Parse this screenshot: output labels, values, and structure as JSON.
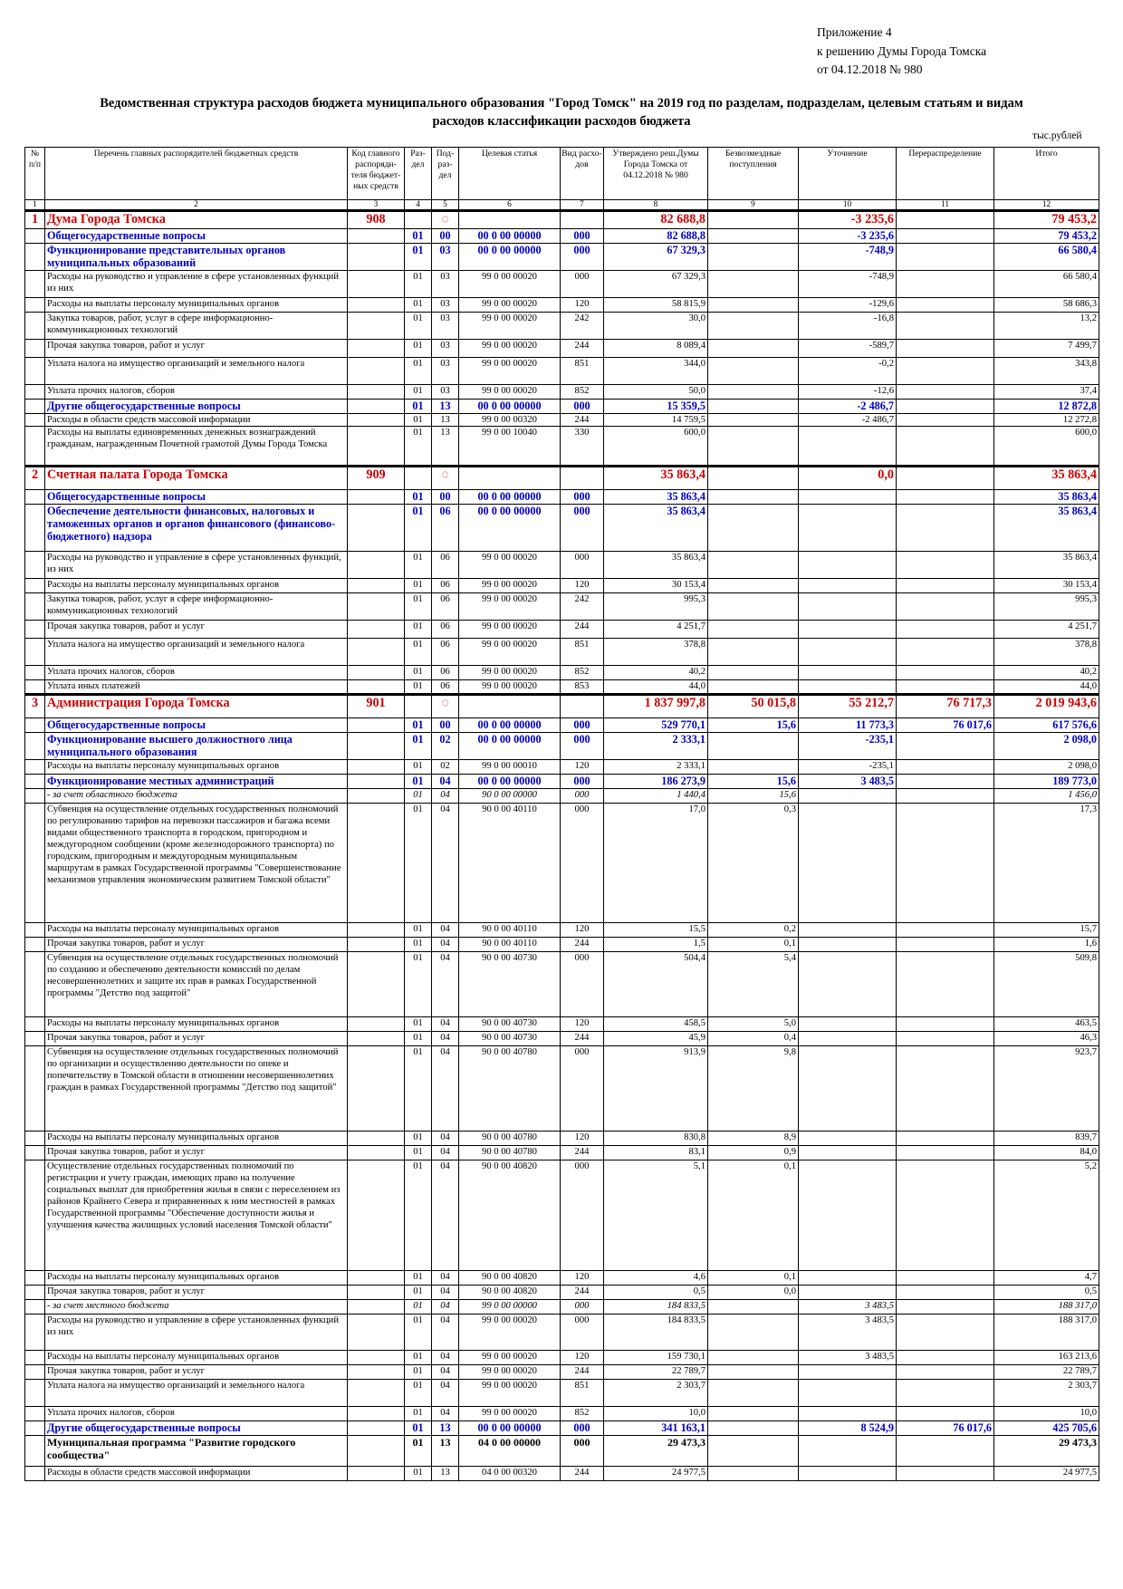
{
  "annex": {
    "line1": "Приложение 4",
    "line2": "к решению Думы Города Томска",
    "line3": "от 04.12.2018 № 980"
  },
  "title": {
    "line1": "Ведомственная структура расходов бюджета муниципального образования \"Город Томск\" на 2019 год по разделам, подразделам, целевым статьям и видам",
    "line2": "расходов классификации расходов бюджета"
  },
  "units": "тыс.рублей",
  "columns": {
    "no": "№ п/п",
    "name": "Перечень главных распорядителей бюджетных средств",
    "admin": "Код главного распоряди-теля бюджет-ных средств",
    "section": "Раз-дел",
    "subsection": "Под-раз-дел",
    "target": "Целевая статья",
    "kind": "Вид расхо-дов",
    "approved": "Утверждено реш.Думы Города Томска от 04.12.2018 № 980",
    "gratuitous": "Безвозмездные поступления",
    "clarification": "Уточнение",
    "redistribution": "Перераспределение",
    "total": "Итого"
  },
  "column_numbers": [
    "1",
    "2",
    "3",
    "4",
    "5",
    "6",
    "7",
    "8",
    "9",
    "10",
    "11",
    "12"
  ],
  "rows": [
    {
      "type": "org",
      "no": "1",
      "name": "Дума Города Томска",
      "admin": "908",
      "subsection": "◌",
      "approved": "82 688,8",
      "clarification": "-3 235,6",
      "total": "79 453,2"
    },
    {
      "type": "sec",
      "name": "Общегосударственные вопросы",
      "section": "01",
      "subsection": "00",
      "target": "00 0 00 00000",
      "kind": "000",
      "approved": "82 688,8",
      "clarification": "-3 235,6",
      "total": "79 453,2"
    },
    {
      "type": "sec",
      "name": "Функционирование представительных органов муниципальных образований",
      "section": "01",
      "subsection": "03",
      "target": "00 0 00 00000",
      "kind": "000",
      "approved": "67 329,3",
      "clarification": "-748,9",
      "total": "66 580,4"
    },
    {
      "type": "item",
      "name": "Расходы на руководство и управление в сфере установленных функций из них",
      "section": "01",
      "subsection": "03",
      "target": "99 0 00 00020",
      "kind": "000",
      "approved": "67 329,3",
      "clarification": "-748,9",
      "total": "66 580,4"
    },
    {
      "type": "item",
      "name": "Расходы на выплаты персоналу муниципальных органов",
      "section": "01",
      "subsection": "03",
      "target": "99 0 00 00020",
      "kind": "120",
      "approved": "58 815,9",
      "clarification": "-129,6",
      "total": "58 686,3"
    },
    {
      "type": "item",
      "name": "Закупка товаров, работ, услуг в сфере информационно-коммуникационных технологий",
      "section": "01",
      "subsection": "03",
      "target": "99 0 00 00020",
      "kind": "242",
      "approved": "30,0",
      "clarification": "-16,8",
      "total": "13,2"
    },
    {
      "type": "item",
      "name": "Прочая закупка товаров, работ и услуг",
      "section": "01",
      "subsection": "03",
      "target": "99 0 00 00020",
      "kind": "244",
      "approved": "8 089,4",
      "clarification": "-589,7",
      "total": "7 499,7"
    },
    {
      "type": "item",
      "name": "Уплата налога на имущество организаций и земельного налога",
      "section": "01",
      "subsection": "03",
      "target": "99 0 00 00020",
      "kind": "851",
      "approved": "344,0",
      "clarification": "-0,2",
      "total": "343,8"
    },
    {
      "type": "item",
      "name": "Уплата прочих налогов, сборов",
      "section": "01",
      "subsection": "03",
      "target": "99 0 00 00020",
      "kind": "852",
      "approved": "50,0",
      "clarification": "-12,6",
      "total": "37,4"
    },
    {
      "type": "sec",
      "name": "Другие общегосударственные вопросы",
      "section": "01",
      "subsection": "13",
      "target": "00 0 00 00000",
      "kind": "000",
      "approved": "15 359,5",
      "clarification": "-2 486,7",
      "total": "12 872,8"
    },
    {
      "type": "item",
      "name": "Расходы в области средств массовой информации",
      "section": "01",
      "subsection": "13",
      "target": "99 0 00 00320",
      "kind": "244",
      "approved": "14 759,5",
      "clarification": "-2 486,7",
      "total": "12 272,8"
    },
    {
      "type": "item",
      "name": "Расходы на выплаты единовременных денежных вознаграждений гражданам, награжденным Почетной грамотой Думы Города Томска",
      "section": "01",
      "subsection": "13",
      "target": "99 0 00 10040",
      "kind": "330",
      "approved": "600,0",
      "total": "600,0"
    },
    {
      "type": "org",
      "no": "2",
      "name": "Счетная палата Города Томска",
      "admin": "909",
      "subsection": "◌",
      "approved": "35 863,4",
      "clarification": "0,0",
      "total": "35 863,4"
    },
    {
      "type": "sec",
      "name": "Общегосударственные вопросы",
      "section": "01",
      "subsection": "00",
      "target": "00 0 00 00000",
      "kind": "000",
      "approved": "35 863,4",
      "total": "35 863,4"
    },
    {
      "type": "sec",
      "name": "Обеспечение деятельности финансовых, налоговых и таможенных органов и органов финансового (финансово-бюджетного) надзора",
      "section": "01",
      "subsection": "06",
      "target": "00 0 00 00000",
      "kind": "000",
      "approved": "35 863,4",
      "total": "35 863,4"
    },
    {
      "type": "item",
      "name": "Расходы на руководство и управление в сфере установленных функций, из них",
      "section": "01",
      "subsection": "06",
      "target": "99 0 00 00020",
      "kind": "000",
      "approved": "35 863,4",
      "total": "35 863,4"
    },
    {
      "type": "item",
      "name": "Расходы на выплаты персоналу муниципальных органов",
      "section": "01",
      "subsection": "06",
      "target": "99 0 00 00020",
      "kind": "120",
      "approved": "30 153,4",
      "total": "30 153,4"
    },
    {
      "type": "item",
      "name": "Закупка товаров, работ, услуг в сфере информационно-коммуникационных технологий",
      "section": "01",
      "subsection": "06",
      "target": "99 0 00 00020",
      "kind": "242",
      "approved": "995,3",
      "total": "995,3"
    },
    {
      "type": "item",
      "name": "Прочая закупка товаров, работ и услуг",
      "section": "01",
      "subsection": "06",
      "target": "99 0 00 00020",
      "kind": "244",
      "approved": "4 251,7",
      "total": "4 251,7"
    },
    {
      "type": "item",
      "name": "Уплата налога на имущество организаций и земельного налога",
      "section": "01",
      "subsection": "06",
      "target": "99 0 00 00020",
      "kind": "851",
      "approved": "378,8",
      "total": "378,8"
    },
    {
      "type": "item",
      "name": "Уплата прочих налогов, сборов",
      "section": "01",
      "subsection": "06",
      "target": "99 0 00 00020",
      "kind": "852",
      "approved": "40,2",
      "total": "40,2"
    },
    {
      "type": "item",
      "name": "Уплата иных платежей",
      "section": "01",
      "subsection": "06",
      "target": "99 0 00 00020",
      "kind": "853",
      "approved": "44,0",
      "total": "44,0"
    },
    {
      "type": "org",
      "no": "3",
      "name": "Администрация Города Томска",
      "admin": "901",
      "subsection": "◌",
      "approved": "1 837 997,8",
      "gratuitous": "50 015,8",
      "clarification": "55 212,7",
      "redistribution": "76 717,3",
      "total": "2 019 943,6"
    },
    {
      "type": "sec",
      "name": "Общегосударственные вопросы",
      "section": "01",
      "subsection": "00",
      "target": "00 0 00 00000",
      "kind": "000",
      "approved": "529 770,1",
      "gratuitous": "15,6",
      "clarification": "11 773,3",
      "redistribution": "76 017,6",
      "total": "617 576,6"
    },
    {
      "type": "sec",
      "name": "Функционирование высшего должностного лица муниципального образования",
      "section": "01",
      "subsection": "02",
      "target": "00 0 00 00000",
      "kind": "000",
      "approved": "2 333,1",
      "clarification": "-235,1",
      "total": "2 098,0"
    },
    {
      "type": "item",
      "name": "Расходы на выплаты персоналу муниципальных органов",
      "section": "01",
      "subsection": "02",
      "target": "99 0 00 00010",
      "kind": "120",
      "approved": "2 333,1",
      "clarification": "-235,1",
      "total": "2 098,0"
    },
    {
      "type": "sec",
      "name": "Функционирование местных администраций",
      "section": "01",
      "subsection": "04",
      "target": "00 0 00 00000",
      "kind": "000",
      "approved": "186 273,9",
      "gratuitous": "15,6",
      "clarification": "3 483,5",
      "total": "189 773,0"
    },
    {
      "type": "it",
      "name": "- за счет областного бюджета",
      "section": "01",
      "subsection": "04",
      "target": "90 0 00 00000",
      "kind": "000",
      "approved": "1 440,4",
      "gratuitous": "15,6",
      "total": "1 456,0"
    },
    {
      "type": "item",
      "name": "Субвенция на осуществление отдельных государственных полномочий по регулированию тарифов на перевозки пассажиров и багажа всеми видами общественного транспорта в городском, пригородном и междугородном сообщении (кроме железнодорожного транспорта) по городским, пригородным и междугородным муниципальным маршрутам в рамках Государственной программы \"Совершенствование механизмов управления экономическим развитием Томской области\"",
      "section": "01",
      "subsection": "04",
      "target": "90 0 00 40110",
      "kind": "000",
      "approved": "17,0",
      "gratuitous": "0,3",
      "total": "17,3"
    },
    {
      "type": "item",
      "name": "Расходы на выплаты персоналу муниципальных органов",
      "section": "01",
      "subsection": "04",
      "target": "90 0 00 40110",
      "kind": "120",
      "approved": "15,5",
      "gratuitous": "0,2",
      "total": "15,7"
    },
    {
      "type": "item",
      "name": "Прочая закупка товаров, работ и услуг",
      "section": "01",
      "subsection": "04",
      "target": "90 0 00 40110",
      "kind": "244",
      "approved": "1,5",
      "gratuitous": "0,1",
      "total": "1,6"
    },
    {
      "type": "item",
      "name": "Субвенция на осуществление отдельных государственных полномочий по созданию и обеспечению деятельности комиссий по делам несовершеннолетних и защите их прав в рамках Государственной программы \"Детство под защитой\"",
      "section": "01",
      "subsection": "04",
      "target": "90 0 00 40730",
      "kind": "000",
      "approved": "504,4",
      "gratuitous": "5,4",
      "total": "509,8"
    },
    {
      "type": "item",
      "name": "Расходы на выплаты персоналу муниципальных органов",
      "section": "01",
      "subsection": "04",
      "target": "90 0 00 40730",
      "kind": "120",
      "approved": "458,5",
      "gratuitous": "5,0",
      "total": "463,5"
    },
    {
      "type": "item",
      "name": "Прочая закупка товаров, работ и услуг",
      "section": "01",
      "subsection": "04",
      "target": "90 0 00 40730",
      "kind": "244",
      "approved": "45,9",
      "gratuitous": "0,4",
      "total": "46,3"
    },
    {
      "type": "item",
      "name": "Субвенция на осуществление отдельных государственных полномочий по организации и осуществлению деятельности по опеке и попечительству в Томской области в отношении несовершеннолетних граждан в рамках Государственной программы \"Детство под защитой\"",
      "section": "01",
      "subsection": "04",
      "target": "90 0 00 40780",
      "kind": "000",
      "approved": "913,9",
      "gratuitous": "9,8",
      "total": "923,7"
    },
    {
      "type": "item",
      "name": "Расходы на выплаты персоналу муниципальных органов",
      "section": "01",
      "subsection": "04",
      "target": "90 0 00 40780",
      "kind": "120",
      "approved": "830,8",
      "gratuitous": "8,9",
      "total": "839,7"
    },
    {
      "type": "item",
      "name": "Прочая закупка товаров, работ и услуг",
      "section": "01",
      "subsection": "04",
      "target": "90 0 00 40780",
      "kind": "244",
      "approved": "83,1",
      "gratuitous": "0,9",
      "total": "84,0"
    },
    {
      "type": "item",
      "name": "Осуществление отдельных государственных полномочий по регистрации и учету граждан, имеющих право на получение социальных выплат для приобретения жилья в связи с переселением из районов Крайнего Севера и приравненных к ним местностей в рамках Государственной программы \"Обеспечение доступности жилья и улучшения качества жилищных условий населения Томской области\"",
      "section": "01",
      "subsection": "04",
      "target": "90 0 00 40820",
      "kind": "000",
      "approved": "5,1",
      "gratuitous": "0,1",
      "total": "5,2"
    },
    {
      "type": "item",
      "name": "Расходы на выплаты персоналу муниципальных органов",
      "section": "01",
      "subsection": "04",
      "target": "90 0 00 40820",
      "kind": "120",
      "approved": "4,6",
      "gratuitous": "0,1",
      "total": "4,7"
    },
    {
      "type": "item",
      "name": "Прочая закупка товаров, работ и услуг",
      "section": "01",
      "subsection": "04",
      "target": "90 0 00 40820",
      "kind": "244",
      "approved": "0,5",
      "gratuitous": "0,0",
      "total": "0,5"
    },
    {
      "type": "it",
      "name": "- за счет местного бюджета",
      "section": "01",
      "subsection": "04",
      "target": "99 0 00 00000",
      "kind": "000",
      "approved": "184 833,5",
      "clarification": "3 483,5",
      "total": "188 317,0"
    },
    {
      "type": "item",
      "name": "Расходы на руководство и управление в сфере установленных функций из них",
      "section": "01",
      "subsection": "04",
      "target": "99 0 00 00020",
      "kind": "000",
      "approved": "184 833,5",
      "clarification": "3 483,5",
      "total": "188 317,0"
    },
    {
      "type": "item",
      "name": "Расходы на выплаты персоналу муниципальных органов",
      "section": "01",
      "subsection": "04",
      "target": "99 0 00 00020",
      "kind": "120",
      "approved": "159 730,1",
      "clarification": "3 483,5",
      "total": "163 213,6"
    },
    {
      "type": "item",
      "name": "Прочая закупка товаров, работ и услуг",
      "section": "01",
      "subsection": "04",
      "target": "99 0 00 00020",
      "kind": "244",
      "approved": "22 789,7",
      "total": "22 789,7"
    },
    {
      "type": "item",
      "name": "Уплата налога на имущество организаций и земельного налога",
      "section": "01",
      "subsection": "04",
      "target": "99 0 00 00020",
      "kind": "851",
      "approved": "2 303,7",
      "total": "2 303,7"
    },
    {
      "type": "item",
      "name": "Уплата прочих налогов, сборов",
      "section": "01",
      "subsection": "04",
      "target": "99 0 00 00020",
      "kind": "852",
      "approved": "10,0",
      "total": "10,0"
    },
    {
      "type": "sec",
      "name": "Другие общегосударственные вопросы",
      "section": "01",
      "subsection": "13",
      "target": "00 0 00 00000",
      "kind": "000",
      "approved": "341 163,1",
      "clarification": "8 524,9",
      "redistribution": "76 017,6",
      "total": "425 705,6"
    },
    {
      "type": "prog",
      "name": "Муниципальная программа \"Развитие городского сообщества\"",
      "section": "01",
      "subsection": "13",
      "target": "04 0 00 00000",
      "kind": "000",
      "approved": "29 473,3",
      "total": "29 473,3"
    },
    {
      "type": "item",
      "name": "Расходы в области средств массовой информации",
      "section": "01",
      "subsection": "13",
      "target": "04 0 00 00320",
      "kind": "244",
      "approved": "24 977,5",
      "total": "24 977,5"
    }
  ],
  "row_heights": [
    20,
    16,
    30,
    30,
    16,
    30,
    20,
    30,
    16,
    16,
    14,
    44,
    26,
    16,
    52,
    30,
    16,
    30,
    20,
    30,
    16,
    16,
    26,
    16,
    30,
    16,
    16,
    16,
    132,
    16,
    16,
    72,
    16,
    16,
    94,
    16,
    16,
    122,
    16,
    16,
    16,
    40,
    16,
    16,
    30,
    16,
    16,
    34,
    16
  ]
}
